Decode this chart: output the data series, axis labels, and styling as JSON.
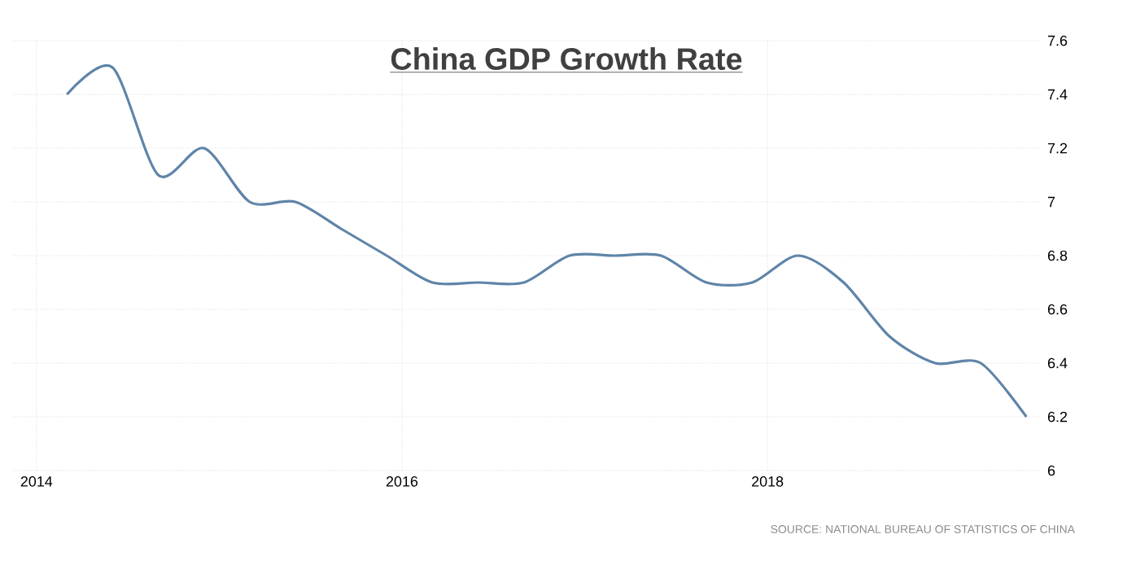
{
  "chart_data": {
    "type": "line",
    "title": "China GDP Growth Rate",
    "x": [
      "2014-03",
      "2014-06",
      "2014-09",
      "2014-12",
      "2015-03",
      "2015-06",
      "2015-09",
      "2015-12",
      "2016-03",
      "2016-06",
      "2016-09",
      "2016-12",
      "2017-03",
      "2017-06",
      "2017-09",
      "2017-12",
      "2018-03",
      "2018-06",
      "2018-09",
      "2018-12",
      "2019-03",
      "2019-06"
    ],
    "series": [
      {
        "color": "#5f84a8",
        "values": [
          7.4,
          7.5,
          7.1,
          7.2,
          7.0,
          7.0,
          6.9,
          6.8,
          6.7,
          6.7,
          6.7,
          6.8,
          6.8,
          6.8,
          6.7,
          6.7,
          6.8,
          6.7,
          6.5,
          6.4,
          6.4,
          6.2
        ]
      }
    ],
    "xlim": [
      "2013-11-15",
      "2019-07-01"
    ],
    "xticks": [
      "2014",
      "2016",
      "2018"
    ],
    "ylim": [
      6,
      7.6
    ],
    "yticks": [
      6,
      6.2,
      6.4,
      6.6,
      6.8,
      7,
      7.2,
      7.4,
      7.6
    ],
    "grid": true,
    "annotations": [
      "SOURCE: NATIONAL BUREAU OF STATISTICS OF CHINA"
    ]
  }
}
